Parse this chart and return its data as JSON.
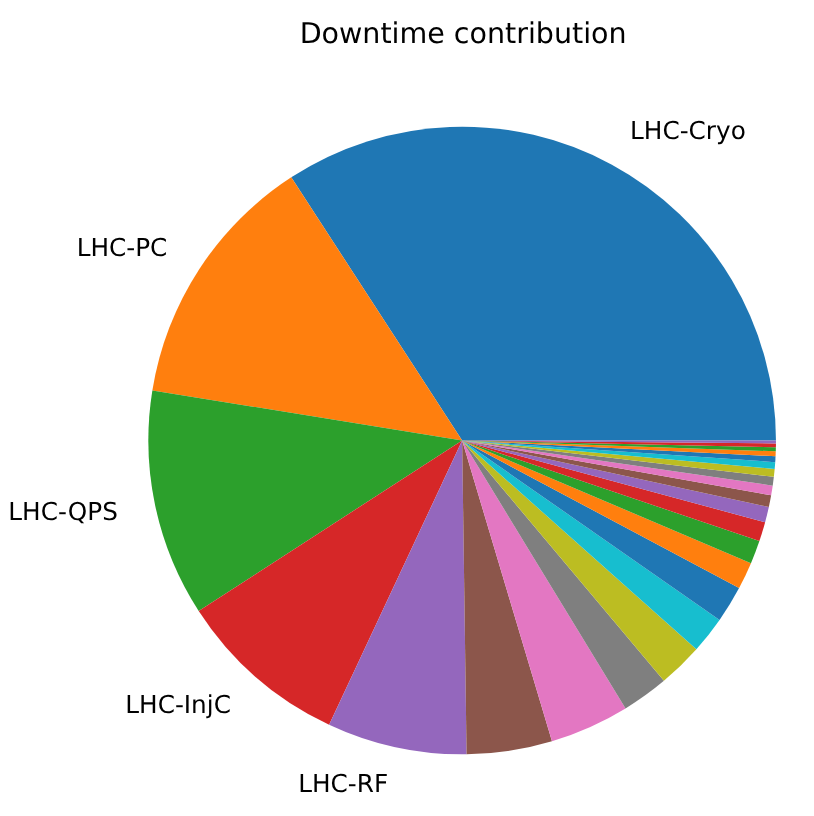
{
  "chart_data": {
    "type": "pie",
    "title": "Downtime contribution",
    "categories": [
      "LHC-Cryo",
      "LHC-PC",
      "LHC-QPS",
      "LHC-InjC",
      "LHC-RF",
      null,
      null,
      null,
      null,
      null,
      null,
      null,
      null,
      null,
      null,
      null,
      null,
      null,
      null,
      null,
      null,
      null,
      null,
      null,
      null
    ],
    "values": [
      34.2,
      13.3,
      11.7,
      8.9,
      7.2,
      4.4,
      4.1,
      2.4,
      2.3,
      1.9,
      1.9,
      1.4,
      1.2,
      1.0,
      0.8,
      0.6,
      0.5,
      0.45,
      0.4,
      0.35,
      0.3,
      0.25,
      0.2,
      0.2,
      0.15
    ],
    "colors": [
      "#1f77b4",
      "#ff7f0e",
      "#2ca02c",
      "#d62728",
      "#9467bd",
      "#8c564b",
      "#e377c2",
      "#7f7f7f",
      "#bcbd22",
      "#17becf",
      "#1f77b4",
      "#ff7f0e",
      "#2ca02c",
      "#d62728",
      "#9467bd",
      "#8c564b",
      "#e377c2",
      "#7f7f7f",
      "#bcbd22",
      "#17becf",
      "#1f77b4",
      "#ff7f0e",
      "#2ca02c",
      "#d62728",
      "#9467bd"
    ],
    "legend": false
  }
}
